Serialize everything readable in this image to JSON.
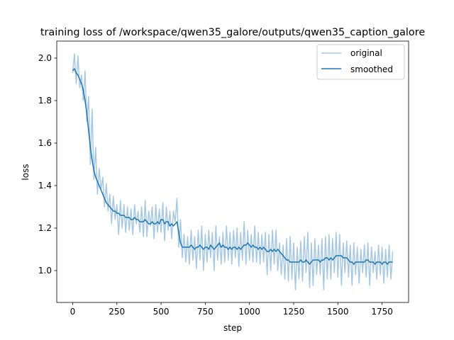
{
  "chart_data": {
    "type": "line",
    "title": "training loss of /workspace/qwen35_galore/outputs/qwen35_caption_galore",
    "xlabel": "step",
    "ylabel": "loss",
    "xlim": [
      -90,
      1900
    ],
    "ylim": [
      0.85,
      2.08
    ],
    "xticks": [
      0,
      250,
      500,
      750,
      1000,
      1250,
      1500,
      1750
    ],
    "yticks": [
      1.0,
      1.2,
      1.4,
      1.6,
      1.8,
      2.0
    ],
    "ytick_labels": [
      "1.0",
      "1.2",
      "1.4",
      "1.6",
      "1.8",
      "2.0"
    ],
    "grid": false,
    "legend_position": "top-right",
    "colors": {
      "original": "#a6c8e3",
      "smoothed": "#1f77b4"
    },
    "series": [
      {
        "name": "original",
        "x": [
          0,
          10,
          20,
          30,
          40,
          50,
          60,
          70,
          80,
          90,
          100,
          110,
          120,
          130,
          140,
          150,
          160,
          170,
          180,
          190,
          200,
          210,
          220,
          230,
          240,
          250,
          260,
          270,
          280,
          290,
          300,
          310,
          320,
          330,
          340,
          350,
          360,
          370,
          380,
          390,
          400,
          410,
          420,
          430,
          440,
          450,
          460,
          470,
          480,
          490,
          500,
          510,
          520,
          530,
          540,
          550,
          560,
          570,
          580,
          590,
          600,
          610,
          620,
          630,
          640,
          650,
          660,
          670,
          680,
          690,
          700,
          710,
          720,
          730,
          740,
          750,
          760,
          770,
          780,
          790,
          800,
          810,
          820,
          830,
          840,
          850,
          860,
          870,
          880,
          890,
          900,
          910,
          920,
          930,
          940,
          950,
          960,
          970,
          980,
          990,
          1000,
          1010,
          1020,
          1030,
          1040,
          1050,
          1060,
          1070,
          1080,
          1090,
          1100,
          1110,
          1120,
          1130,
          1140,
          1150,
          1160,
          1170,
          1180,
          1190,
          1200,
          1210,
          1220,
          1230,
          1240,
          1250,
          1260,
          1270,
          1280,
          1290,
          1300,
          1310,
          1320,
          1330,
          1340,
          1350,
          1360,
          1370,
          1380,
          1390,
          1400,
          1410,
          1420,
          1430,
          1440,
          1450,
          1460,
          1470,
          1480,
          1490,
          1500,
          1510,
          1520,
          1530,
          1540,
          1550,
          1560,
          1570,
          1580,
          1590,
          1600,
          1610,
          1620,
          1630,
          1640,
          1650,
          1660,
          1670,
          1680,
          1690,
          1700,
          1710,
          1720,
          1730,
          1740,
          1750,
          1760,
          1770,
          1780,
          1790,
          1800,
          1810
        ],
        "values": [
          1.93,
          2.02,
          1.88,
          2.01,
          1.86,
          1.92,
          1.8,
          1.94,
          1.7,
          1.82,
          1.5,
          1.76,
          1.43,
          1.58,
          1.36,
          1.48,
          1.38,
          1.44,
          1.3,
          1.41,
          1.28,
          1.36,
          1.22,
          1.35,
          1.24,
          1.31,
          1.17,
          1.33,
          1.2,
          1.31,
          1.18,
          1.3,
          1.19,
          1.29,
          1.17,
          1.31,
          1.22,
          1.28,
          1.18,
          1.3,
          1.16,
          1.33,
          1.16,
          1.28,
          1.21,
          1.3,
          1.15,
          1.31,
          1.18,
          1.29,
          1.18,
          1.32,
          1.14,
          1.3,
          1.19,
          1.28,
          1.15,
          1.28,
          1.23,
          1.34,
          1.11,
          1.24,
          1.06,
          1.17,
          1.04,
          1.16,
          1.03,
          1.19,
          1.05,
          1.16,
          1.01,
          1.19,
          1.05,
          1.21,
          1.0,
          1.17,
          1.04,
          1.19,
          1.06,
          1.18,
          1.0,
          1.21,
          1.05,
          1.16,
          1.03,
          1.18,
          1.04,
          1.21,
          1.05,
          1.18,
          1.03,
          1.19,
          1.06,
          1.2,
          1.02,
          1.18,
          1.05,
          1.23,
          1.03,
          1.19,
          1.05,
          1.17,
          1.04,
          1.21,
          1.04,
          1.18,
          1.03,
          1.17,
          1.04,
          1.18,
          0.98,
          1.17,
          1.0,
          1.19,
          1.03,
          1.19,
          1.0,
          1.13,
          0.98,
          1.12,
          0.96,
          1.15,
          0.95,
          1.16,
          0.96,
          1.13,
          0.91,
          1.11,
          0.96,
          1.14,
          0.95,
          1.16,
          0.99,
          1.18,
          0.92,
          1.13,
          0.93,
          1.15,
          0.98,
          1.12,
          0.98,
          1.15,
          0.91,
          1.16,
          0.96,
          1.17,
          0.96,
          1.15,
          0.99,
          1.18,
          0.97,
          1.17,
          0.93,
          1.13,
          0.99,
          1.14,
          0.97,
          1.12,
          0.93,
          1.13,
          0.98,
          1.11,
          0.94,
          1.1,
          0.99,
          1.12,
          0.97,
          1.13,
          0.93,
          1.11,
          0.99,
          1.09,
          0.96,
          1.12,
          0.98,
          1.11,
          0.94,
          1.1,
          0.97,
          1.12,
          0.96,
          1.09
        ]
      },
      {
        "name": "smoothed",
        "x": [
          0,
          10,
          20,
          30,
          40,
          50,
          60,
          70,
          80,
          90,
          100,
          110,
          120,
          130,
          140,
          150,
          160,
          170,
          180,
          190,
          200,
          210,
          220,
          230,
          240,
          250,
          260,
          270,
          280,
          290,
          300,
          310,
          320,
          330,
          340,
          350,
          360,
          370,
          380,
          390,
          400,
          410,
          420,
          430,
          440,
          450,
          460,
          470,
          480,
          490,
          500,
          510,
          520,
          530,
          540,
          550,
          560,
          570,
          580,
          590,
          600,
          610,
          620,
          630,
          640,
          650,
          660,
          670,
          680,
          690,
          700,
          710,
          720,
          730,
          740,
          750,
          760,
          770,
          780,
          790,
          800,
          810,
          820,
          830,
          840,
          850,
          860,
          870,
          880,
          890,
          900,
          910,
          920,
          930,
          940,
          950,
          960,
          970,
          980,
          990,
          1000,
          1010,
          1020,
          1030,
          1040,
          1050,
          1060,
          1070,
          1080,
          1090,
          1100,
          1110,
          1120,
          1130,
          1140,
          1150,
          1160,
          1170,
          1180,
          1190,
          1200,
          1210,
          1220,
          1230,
          1240,
          1250,
          1260,
          1270,
          1280,
          1290,
          1300,
          1310,
          1320,
          1330,
          1340,
          1350,
          1360,
          1370,
          1380,
          1390,
          1400,
          1410,
          1420,
          1430,
          1440,
          1450,
          1460,
          1470,
          1480,
          1490,
          1500,
          1510,
          1520,
          1530,
          1540,
          1550,
          1560,
          1570,
          1580,
          1590,
          1600,
          1610,
          1620,
          1630,
          1640,
          1650,
          1660,
          1670,
          1680,
          1690,
          1700,
          1710,
          1720,
          1730,
          1740,
          1750,
          1760,
          1770,
          1780,
          1790,
          1800,
          1810
        ],
        "values": [
          1.94,
          1.95,
          1.93,
          1.92,
          1.9,
          1.88,
          1.85,
          1.8,
          1.74,
          1.66,
          1.58,
          1.52,
          1.47,
          1.44,
          1.42,
          1.4,
          1.38,
          1.36,
          1.34,
          1.32,
          1.31,
          1.3,
          1.29,
          1.28,
          1.28,
          1.27,
          1.27,
          1.26,
          1.26,
          1.26,
          1.25,
          1.25,
          1.25,
          1.24,
          1.24,
          1.25,
          1.24,
          1.24,
          1.23,
          1.23,
          1.23,
          1.24,
          1.23,
          1.22,
          1.22,
          1.23,
          1.22,
          1.22,
          1.23,
          1.22,
          1.24,
          1.24,
          1.22,
          1.23,
          1.23,
          1.21,
          1.22,
          1.21,
          1.22,
          1.23,
          1.18,
          1.13,
          1.11,
          1.11,
          1.11,
          1.11,
          1.11,
          1.12,
          1.11,
          1.1,
          1.11,
          1.11,
          1.12,
          1.11,
          1.1,
          1.11,
          1.11,
          1.1,
          1.12,
          1.11,
          1.1,
          1.11,
          1.12,
          1.13,
          1.11,
          1.12,
          1.11,
          1.11,
          1.1,
          1.11,
          1.1,
          1.11,
          1.11,
          1.1,
          1.11,
          1.1,
          1.11,
          1.12,
          1.12,
          1.13,
          1.12,
          1.11,
          1.12,
          1.11,
          1.11,
          1.1,
          1.11,
          1.1,
          1.11,
          1.1,
          1.09,
          1.09,
          1.1,
          1.09,
          1.1,
          1.09,
          1.1,
          1.09,
          1.08,
          1.07,
          1.06,
          1.05,
          1.05,
          1.04,
          1.04,
          1.04,
          1.04,
          1.04,
          1.04,
          1.05,
          1.04,
          1.04,
          1.05,
          1.04,
          1.03,
          1.04,
          1.05,
          1.05,
          1.05,
          1.05,
          1.04,
          1.05,
          1.05,
          1.06,
          1.06,
          1.05,
          1.06,
          1.05,
          1.06,
          1.07,
          1.07,
          1.07,
          1.07,
          1.06,
          1.06,
          1.06,
          1.05,
          1.04,
          1.04,
          1.03,
          1.04,
          1.04,
          1.04,
          1.04,
          1.04,
          1.04,
          1.05,
          1.05,
          1.04,
          1.04,
          1.04,
          1.03,
          1.04,
          1.04,
          1.04,
          1.03,
          1.04,
          1.04,
          1.03,
          1.04,
          1.04,
          1.04
        ]
      }
    ]
  }
}
